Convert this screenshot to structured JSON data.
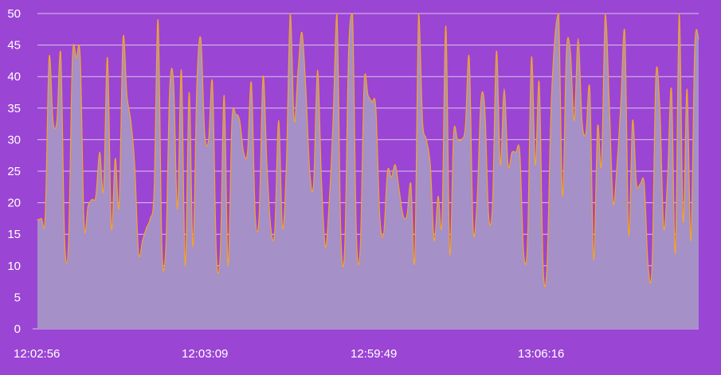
{
  "chart_data": {
    "type": "area",
    "title": "",
    "xlabel": "",
    "ylabel": "",
    "ylim": [
      0,
      50
    ],
    "y_ticks": [
      0,
      5,
      10,
      15,
      20,
      25,
      30,
      35,
      40,
      45,
      50
    ],
    "grid": true,
    "legend": "none",
    "x_tick_labels": [
      "12:02:56",
      "12:03:09",
      "12:59:49",
      "13:06:16"
    ],
    "series": [
      {
        "values": [
          17.3,
          17.5,
          18,
          43,
          33,
          33,
          43.5,
          14,
          14,
          43,
          43,
          43,
          16.5,
          19.5,
          20.5,
          21,
          28,
          22,
          43,
          16,
          27,
          19.5,
          46,
          37,
          33,
          26,
          12,
          14,
          16,
          17.5,
          22,
          49,
          13,
          13,
          38,
          39,
          19,
          41,
          10,
          37.5,
          13,
          39,
          46,
          31,
          30,
          39,
          12,
          12,
          37,
          10,
          33,
          34,
          33,
          28,
          28,
          39,
          18,
          18,
          40,
          26,
          16,
          15.5,
          33,
          16,
          26,
          50,
          33,
          41,
          47,
          38,
          25,
          23,
          41,
          24,
          13,
          20,
          33,
          50,
          15,
          13,
          44,
          50,
          15,
          13,
          39,
          37,
          36,
          35,
          18,
          15,
          25,
          24,
          26,
          22,
          18,
          18,
          23,
          11,
          50,
          33,
          30,
          26,
          14,
          21,
          17,
          48,
          12,
          31,
          30,
          30,
          32,
          43,
          16,
          20,
          36,
          35,
          18,
          20,
          44,
          26,
          38,
          26,
          28,
          28,
          28,
          12,
          14,
          43,
          26,
          39,
          10,
          10,
          34,
          46,
          50,
          21,
          44,
          44,
          33,
          46,
          33,
          31,
          38,
          11,
          32,
          26,
          50,
          36,
          20,
          26,
          36,
          47,
          15,
          33,
          23,
          23,
          23,
          10,
          10,
          40,
          35,
          16,
          24,
          38,
          12,
          50,
          17,
          38,
          14,
          45,
          46
        ]
      }
    ],
    "colors": {
      "background": "#9b45d4",
      "area_fill": "#a590c7",
      "line": "#f4a524",
      "grid": "#d8c6ea",
      "text": "#ffffff"
    }
  }
}
